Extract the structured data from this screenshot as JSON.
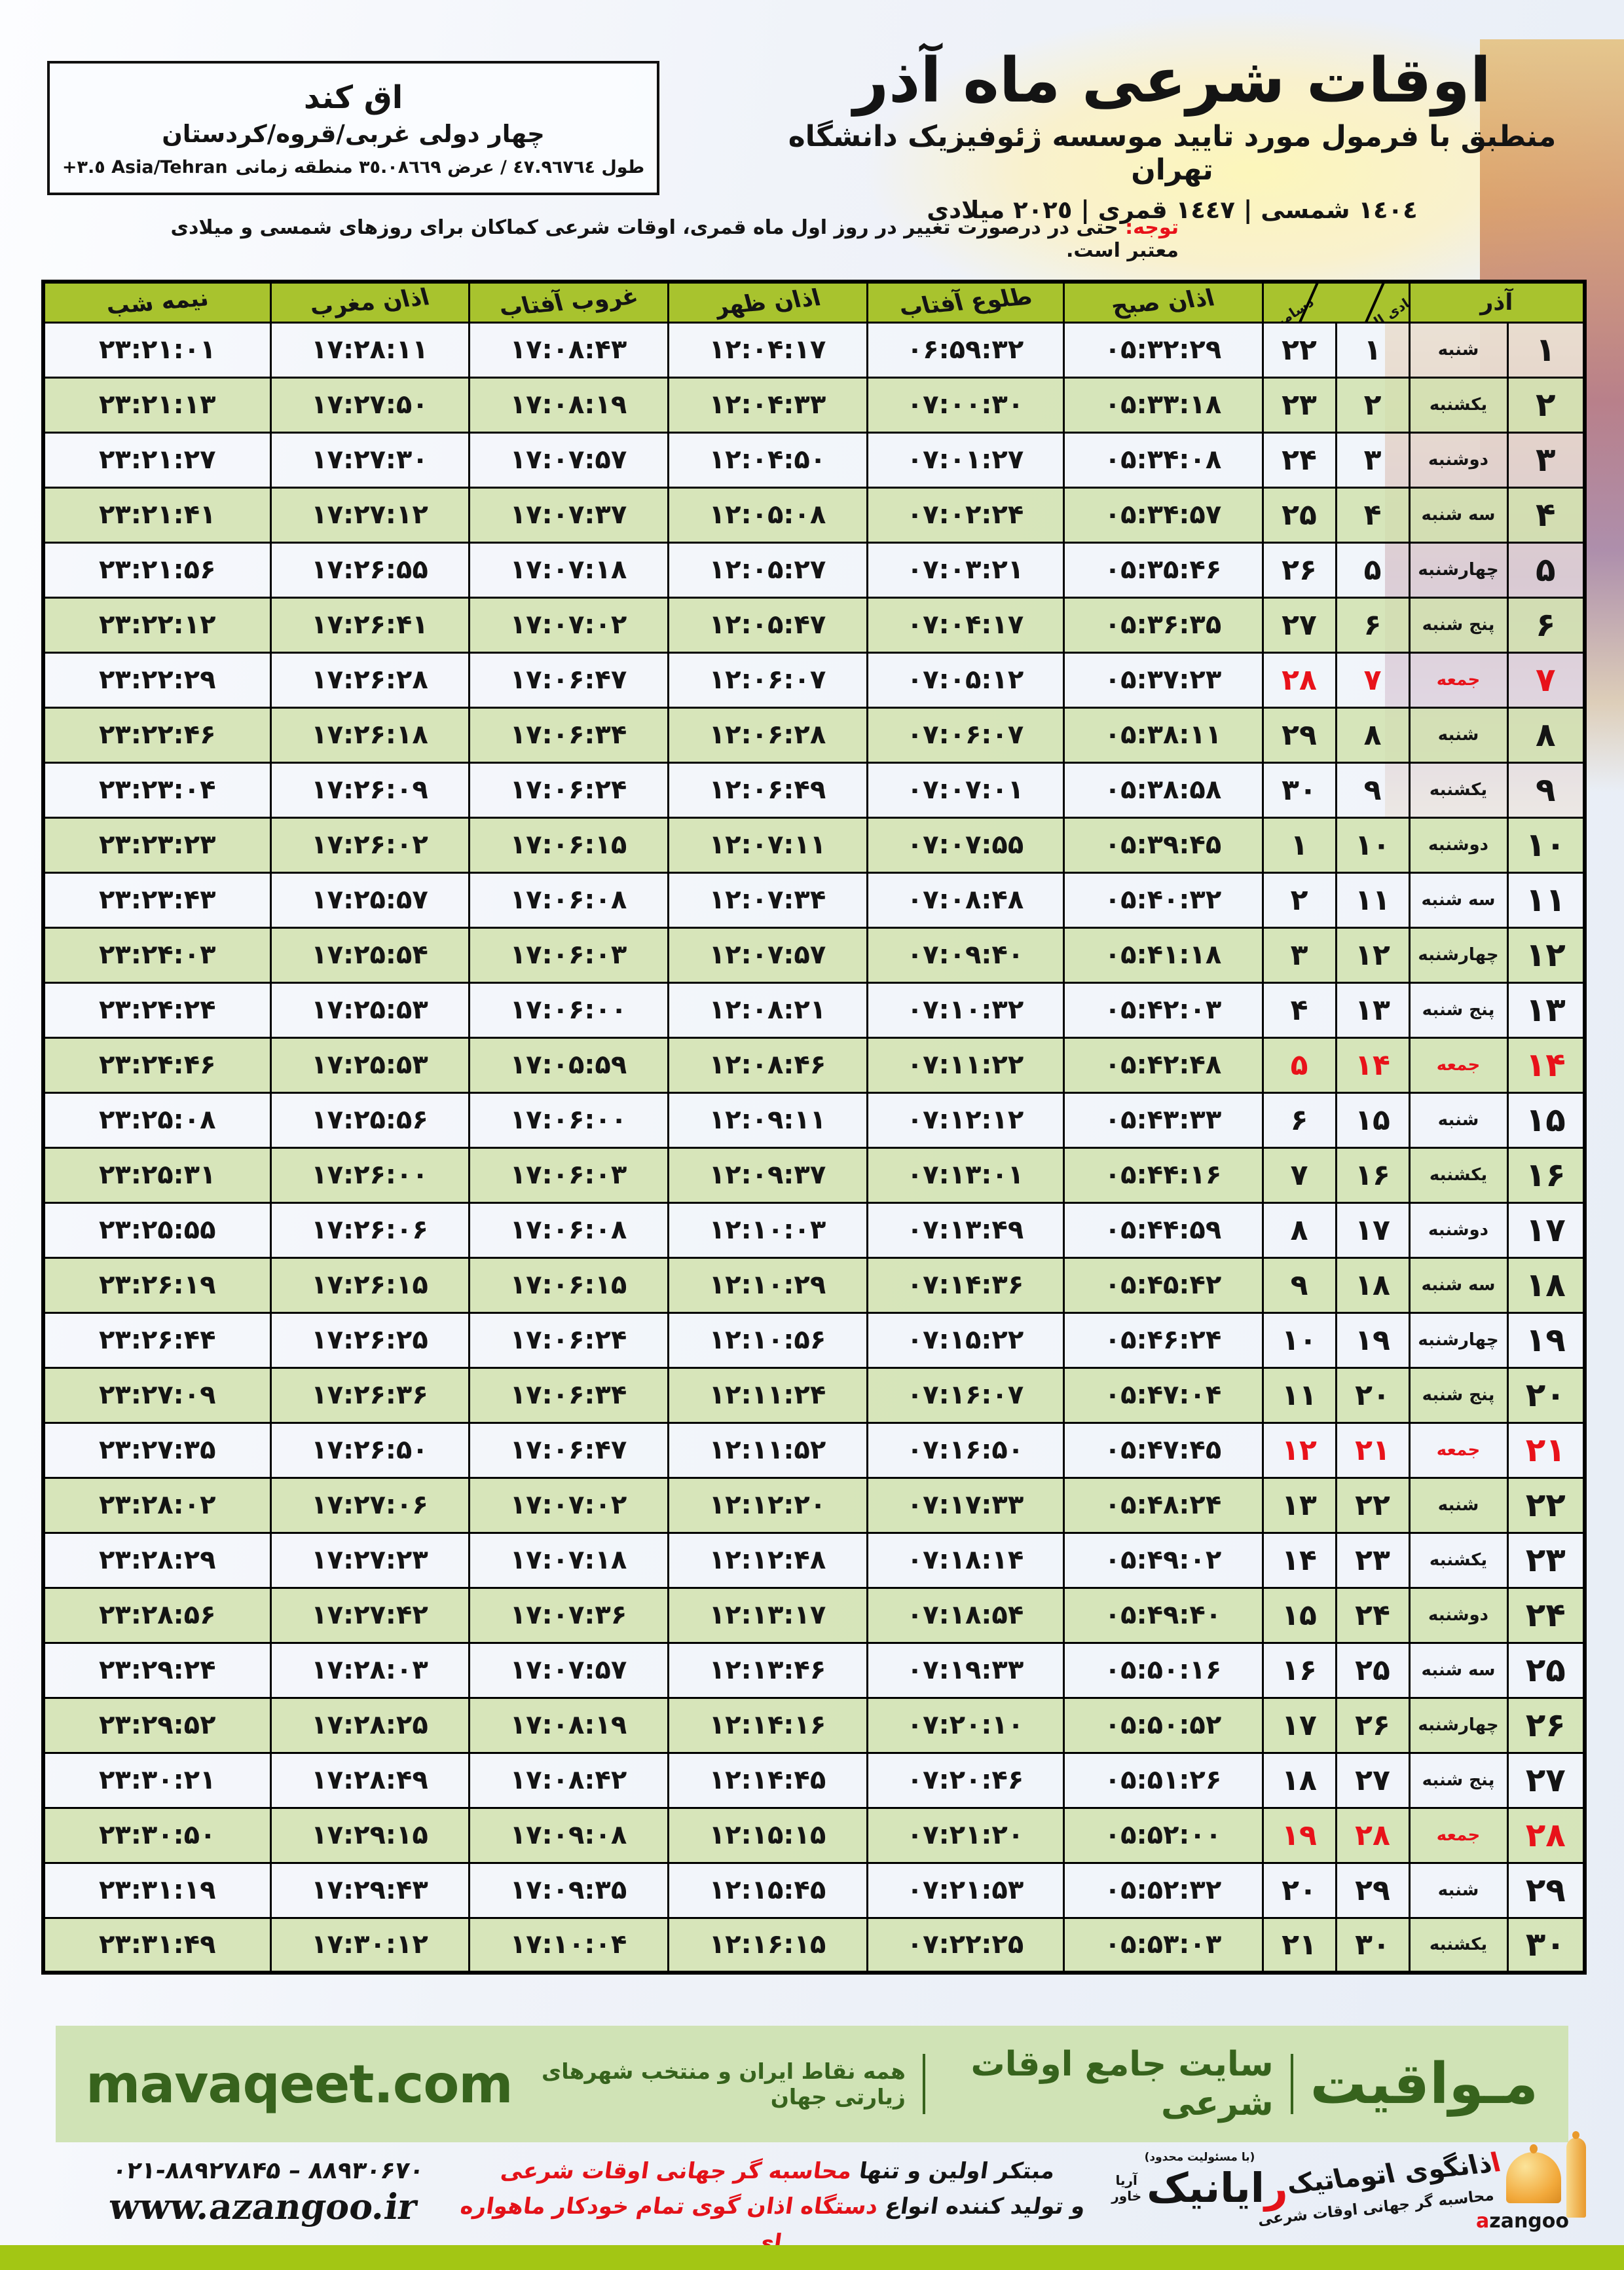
{
  "location_box": {
    "name": "اق کند",
    "region": "چهار دولی غربی/قروه/کردستان",
    "coords_fa": "طول ٤٧.٩٦٧٦٤ / عرض ٣٥.٠٨٦٦٩ منطقه زمانی",
    "coords_en": "+٣.٥ Asia/Tehran"
  },
  "header": {
    "title": "اوقات شرعی ماه آذر",
    "subtitle": "منطبق با فرمول مورد تایید موسسه ژئوفیزیک دانشگاه تهران",
    "dates_line": "١٤٠٤ شمسی | ١٤٤٧ قمری | ٢٠٢٥ میلادی"
  },
  "notice": {
    "label": "توجه:",
    "text": "حتی در درصورت تغییر در روز اول ماه قمری، اوقات شرعی کماکان برای روزهای شمسی و میلادی معتبر است."
  },
  "table": {
    "headers": {
      "midnight": "نیمه شب",
      "maghrib": "اذان مغرب",
      "sunset": "غروب آفتاب",
      "dhuhr": "اذان ظهر",
      "sunrise": "طلوع آفتاب",
      "fajr": "اذان صبح",
      "diagonal_top": "جمادی الثانی نوامبر",
      "diagonal_bottom": "دسامبر",
      "azar_month": "آذر"
    },
    "column_order": [
      "midnight",
      "maghrib",
      "sunset",
      "dhuhr",
      "sunrise",
      "fajr",
      "greg",
      "hijri",
      "weekday",
      "azar"
    ],
    "rows": [
      {
        "azar": "۱",
        "weekday": "شنبه",
        "hijri": "۱",
        "greg": "۲۲",
        "fajr": "۰۵:۳۲:۲۹",
        "sunrise": "۰۶:۵۹:۳۲",
        "dhuhr": "۱۲:۰۴:۱۷",
        "sunset": "۱۷:۰۸:۴۳",
        "maghrib": "۱۷:۲۸:۱۱",
        "midnight": "۲۳:۲۱:۰۱",
        "friday": false
      },
      {
        "azar": "۲",
        "weekday": "یکشنبه",
        "hijri": "۲",
        "greg": "۲۳",
        "fajr": "۰۵:۳۳:۱۸",
        "sunrise": "۰۷:۰۰:۳۰",
        "dhuhr": "۱۲:۰۴:۳۳",
        "sunset": "۱۷:۰۸:۱۹",
        "maghrib": "۱۷:۲۷:۵۰",
        "midnight": "۲۳:۲۱:۱۳",
        "friday": false
      },
      {
        "azar": "۳",
        "weekday": "دوشنبه",
        "hijri": "۳",
        "greg": "۲۴",
        "fajr": "۰۵:۳۴:۰۸",
        "sunrise": "۰۷:۰۱:۲۷",
        "dhuhr": "۱۲:۰۴:۵۰",
        "sunset": "۱۷:۰۷:۵۷",
        "maghrib": "۱۷:۲۷:۳۰",
        "midnight": "۲۳:۲۱:۲۷",
        "friday": false
      },
      {
        "azar": "۴",
        "weekday": "سه شنبه",
        "hijri": "۴",
        "greg": "۲۵",
        "fajr": "۰۵:۳۴:۵۷",
        "sunrise": "۰۷:۰۲:۲۴",
        "dhuhr": "۱۲:۰۵:۰۸",
        "sunset": "۱۷:۰۷:۳۷",
        "maghrib": "۱۷:۲۷:۱۲",
        "midnight": "۲۳:۲۱:۴۱",
        "friday": false
      },
      {
        "azar": "۵",
        "weekday": "چهارشنبه",
        "hijri": "۵",
        "greg": "۲۶",
        "fajr": "۰۵:۳۵:۴۶",
        "sunrise": "۰۷:۰۳:۲۱",
        "dhuhr": "۱۲:۰۵:۲۷",
        "sunset": "۱۷:۰۷:۱۸",
        "maghrib": "۱۷:۲۶:۵۵",
        "midnight": "۲۳:۲۱:۵۶",
        "friday": false
      },
      {
        "azar": "۶",
        "weekday": "پنج شنبه",
        "hijri": "۶",
        "greg": "۲۷",
        "fajr": "۰۵:۳۶:۳۵",
        "sunrise": "۰۷:۰۴:۱۷",
        "dhuhr": "۱۲:۰۵:۴۷",
        "sunset": "۱۷:۰۷:۰۲",
        "maghrib": "۱۷:۲۶:۴۱",
        "midnight": "۲۳:۲۲:۱۲",
        "friday": false
      },
      {
        "azar": "۷",
        "weekday": "جمعه",
        "hijri": "۷",
        "greg": "۲۸",
        "fajr": "۰۵:۳۷:۲۳",
        "sunrise": "۰۷:۰۵:۱۲",
        "dhuhr": "۱۲:۰۶:۰۷",
        "sunset": "۱۷:۰۶:۴۷",
        "maghrib": "۱۷:۲۶:۲۸",
        "midnight": "۲۳:۲۲:۲۹",
        "friday": true
      },
      {
        "azar": "۸",
        "weekday": "شنبه",
        "hijri": "۸",
        "greg": "۲۹",
        "fajr": "۰۵:۳۸:۱۱",
        "sunrise": "۰۷:۰۶:۰۷",
        "dhuhr": "۱۲:۰۶:۲۸",
        "sunset": "۱۷:۰۶:۳۴",
        "maghrib": "۱۷:۲۶:۱۸",
        "midnight": "۲۳:۲۲:۴۶",
        "friday": false
      },
      {
        "azar": "۹",
        "weekday": "یکشنبه",
        "hijri": "۹",
        "greg": "۳۰",
        "fajr": "۰۵:۳۸:۵۸",
        "sunrise": "۰۷:۰۷:۰۱",
        "dhuhr": "۱۲:۰۶:۴۹",
        "sunset": "۱۷:۰۶:۲۴",
        "maghrib": "۱۷:۲۶:۰۹",
        "midnight": "۲۳:۲۳:۰۴",
        "friday": false
      },
      {
        "azar": "۱۰",
        "weekday": "دوشنبه",
        "hijri": "۱۰",
        "greg": "۱",
        "fajr": "۰۵:۳۹:۴۵",
        "sunrise": "۰۷:۰۷:۵۵",
        "dhuhr": "۱۲:۰۷:۱۱",
        "sunset": "۱۷:۰۶:۱۵",
        "maghrib": "۱۷:۲۶:۰۲",
        "midnight": "۲۳:۲۳:۲۳",
        "friday": false
      },
      {
        "azar": "۱۱",
        "weekday": "سه شنبه",
        "hijri": "۱۱",
        "greg": "۲",
        "fajr": "۰۵:۴۰:۳۲",
        "sunrise": "۰۷:۰۸:۴۸",
        "dhuhr": "۱۲:۰۷:۳۴",
        "sunset": "۱۷:۰۶:۰۸",
        "maghrib": "۱۷:۲۵:۵۷",
        "midnight": "۲۳:۲۳:۴۳",
        "friday": false
      },
      {
        "azar": "۱۲",
        "weekday": "چهارشنبه",
        "hijri": "۱۲",
        "greg": "۳",
        "fajr": "۰۵:۴۱:۱۸",
        "sunrise": "۰۷:۰۹:۴۰",
        "dhuhr": "۱۲:۰۷:۵۷",
        "sunset": "۱۷:۰۶:۰۳",
        "maghrib": "۱۷:۲۵:۵۴",
        "midnight": "۲۳:۲۴:۰۳",
        "friday": false
      },
      {
        "azar": "۱۳",
        "weekday": "پنج شنبه",
        "hijri": "۱۳",
        "greg": "۴",
        "fajr": "۰۵:۴۲:۰۳",
        "sunrise": "۰۷:۱۰:۳۲",
        "dhuhr": "۱۲:۰۸:۲۱",
        "sunset": "۱۷:۰۶:۰۰",
        "maghrib": "۱۷:۲۵:۵۳",
        "midnight": "۲۳:۲۴:۲۴",
        "friday": false
      },
      {
        "azar": "۱۴",
        "weekday": "جمعه",
        "hijri": "۱۴",
        "greg": "۵",
        "fajr": "۰۵:۴۲:۴۸",
        "sunrise": "۰۷:۱۱:۲۲",
        "dhuhr": "۱۲:۰۸:۴۶",
        "sunset": "۱۷:۰۵:۵۹",
        "maghrib": "۱۷:۲۵:۵۳",
        "midnight": "۲۳:۲۴:۴۶",
        "friday": true
      },
      {
        "azar": "۱۵",
        "weekday": "شنبه",
        "hijri": "۱۵",
        "greg": "۶",
        "fajr": "۰۵:۴۳:۳۳",
        "sunrise": "۰۷:۱۲:۱۲",
        "dhuhr": "۱۲:۰۹:۱۱",
        "sunset": "۱۷:۰۶:۰۰",
        "maghrib": "۱۷:۲۵:۵۶",
        "midnight": "۲۳:۲۵:۰۸",
        "friday": false
      },
      {
        "azar": "۱۶",
        "weekday": "یکشنبه",
        "hijri": "۱۶",
        "greg": "۷",
        "fajr": "۰۵:۴۴:۱۶",
        "sunrise": "۰۷:۱۳:۰۱",
        "dhuhr": "۱۲:۰۹:۳۷",
        "sunset": "۱۷:۰۶:۰۳",
        "maghrib": "۱۷:۲۶:۰۰",
        "midnight": "۲۳:۲۵:۳۱",
        "friday": false
      },
      {
        "azar": "۱۷",
        "weekday": "دوشنبه",
        "hijri": "۱۷",
        "greg": "۸",
        "fajr": "۰۵:۴۴:۵۹",
        "sunrise": "۰۷:۱۳:۴۹",
        "dhuhr": "۱۲:۱۰:۰۳",
        "sunset": "۱۷:۰۶:۰۸",
        "maghrib": "۱۷:۲۶:۰۶",
        "midnight": "۲۳:۲۵:۵۵",
        "friday": false
      },
      {
        "azar": "۱۸",
        "weekday": "سه شنبه",
        "hijri": "۱۸",
        "greg": "۹",
        "fajr": "۰۵:۴۵:۴۲",
        "sunrise": "۰۷:۱۴:۳۶",
        "dhuhr": "۱۲:۱۰:۲۹",
        "sunset": "۱۷:۰۶:۱۵",
        "maghrib": "۱۷:۲۶:۱۵",
        "midnight": "۲۳:۲۶:۱۹",
        "friday": false
      },
      {
        "azar": "۱۹",
        "weekday": "چهارشنبه",
        "hijri": "۱۹",
        "greg": "۱۰",
        "fajr": "۰۵:۴۶:۲۴",
        "sunrise": "۰۷:۱۵:۲۲",
        "dhuhr": "۱۲:۱۰:۵۶",
        "sunset": "۱۷:۰۶:۲۴",
        "maghrib": "۱۷:۲۶:۲۵",
        "midnight": "۲۳:۲۶:۴۴",
        "friday": false
      },
      {
        "azar": "۲۰",
        "weekday": "پنج شنبه",
        "hijri": "۲۰",
        "greg": "۱۱",
        "fajr": "۰۵:۴۷:۰۴",
        "sunrise": "۰۷:۱۶:۰۷",
        "dhuhr": "۱۲:۱۱:۲۴",
        "sunset": "۱۷:۰۶:۳۴",
        "maghrib": "۱۷:۲۶:۳۶",
        "midnight": "۲۳:۲۷:۰۹",
        "friday": false
      },
      {
        "azar": "۲۱",
        "weekday": "جمعه",
        "hijri": "۲۱",
        "greg": "۱۲",
        "fajr": "۰۵:۴۷:۴۵",
        "sunrise": "۰۷:۱۶:۵۰",
        "dhuhr": "۱۲:۱۱:۵۲",
        "sunset": "۱۷:۰۶:۴۷",
        "maghrib": "۱۷:۲۶:۵۰",
        "midnight": "۲۳:۲۷:۳۵",
        "friday": true
      },
      {
        "azar": "۲۲",
        "weekday": "شنبه",
        "hijri": "۲۲",
        "greg": "۱۳",
        "fajr": "۰۵:۴۸:۲۴",
        "sunrise": "۰۷:۱۷:۳۳",
        "dhuhr": "۱۲:۱۲:۲۰",
        "sunset": "۱۷:۰۷:۰۲",
        "maghrib": "۱۷:۲۷:۰۶",
        "midnight": "۲۳:۲۸:۰۲",
        "friday": false
      },
      {
        "azar": "۲۳",
        "weekday": "یکشنبه",
        "hijri": "۲۳",
        "greg": "۱۴",
        "fajr": "۰۵:۴۹:۰۲",
        "sunrise": "۰۷:۱۸:۱۴",
        "dhuhr": "۱۲:۱۲:۴۸",
        "sunset": "۱۷:۰۷:۱۸",
        "maghrib": "۱۷:۲۷:۲۳",
        "midnight": "۲۳:۲۸:۲۹",
        "friday": false
      },
      {
        "azar": "۲۴",
        "weekday": "دوشنبه",
        "hijri": "۲۴",
        "greg": "۱۵",
        "fajr": "۰۵:۴۹:۴۰",
        "sunrise": "۰۷:۱۸:۵۴",
        "dhuhr": "۱۲:۱۳:۱۷",
        "sunset": "۱۷:۰۷:۳۶",
        "maghrib": "۱۷:۲۷:۴۲",
        "midnight": "۲۳:۲۸:۵۶",
        "friday": false
      },
      {
        "azar": "۲۵",
        "weekday": "سه شنبه",
        "hijri": "۲۵",
        "greg": "۱۶",
        "fajr": "۰۵:۵۰:۱۶",
        "sunrise": "۰۷:۱۹:۳۳",
        "dhuhr": "۱۲:۱۳:۴۶",
        "sunset": "۱۷:۰۷:۵۷",
        "maghrib": "۱۷:۲۸:۰۳",
        "midnight": "۲۳:۲۹:۲۴",
        "friday": false
      },
      {
        "azar": "۲۶",
        "weekday": "چهارشنبه",
        "hijri": "۲۶",
        "greg": "۱۷",
        "fajr": "۰۵:۵۰:۵۲",
        "sunrise": "۰۷:۲۰:۱۰",
        "dhuhr": "۱۲:۱۴:۱۶",
        "sunset": "۱۷:۰۸:۱۹",
        "maghrib": "۱۷:۲۸:۲۵",
        "midnight": "۲۳:۲۹:۵۲",
        "friday": false
      },
      {
        "azar": "۲۷",
        "weekday": "پنج شنبه",
        "hijri": "۲۷",
        "greg": "۱۸",
        "fajr": "۰۵:۵۱:۲۶",
        "sunrise": "۰۷:۲۰:۴۶",
        "dhuhr": "۱۲:۱۴:۴۵",
        "sunset": "۱۷:۰۸:۴۲",
        "maghrib": "۱۷:۲۸:۴۹",
        "midnight": "۲۳:۳۰:۲۱",
        "friday": false
      },
      {
        "azar": "۲۸",
        "weekday": "جمعه",
        "hijri": "۲۸",
        "greg": "۱۹",
        "fajr": "۰۵:۵۲:۰۰",
        "sunrise": "۰۷:۲۱:۲۰",
        "dhuhr": "۱۲:۱۵:۱۵",
        "sunset": "۱۷:۰۹:۰۸",
        "maghrib": "۱۷:۲۹:۱۵",
        "midnight": "۲۳:۳۰:۵۰",
        "friday": true
      },
      {
        "azar": "۲۹",
        "weekday": "شنبه",
        "hijri": "۲۹",
        "greg": "۲۰",
        "fajr": "۰۵:۵۲:۳۲",
        "sunrise": "۰۷:۲۱:۵۳",
        "dhuhr": "۱۲:۱۵:۴۵",
        "sunset": "۱۷:۰۹:۳۵",
        "maghrib": "۱۷:۲۹:۴۳",
        "midnight": "۲۳:۳۱:۱۹",
        "friday": false
      },
      {
        "azar": "۳۰",
        "weekday": "یکشنبه",
        "hijri": "۳۰",
        "greg": "۲۱",
        "fajr": "۰۵:۵۳:۰۳",
        "sunrise": "۰۷:۲۲:۲۵",
        "dhuhr": "۱۲:۱۶:۱۵",
        "sunset": "۱۷:۱۰:۰۴",
        "maghrib": "۱۷:۳۰:۱۲",
        "midnight": "۲۳:۳۱:۴۹",
        "friday": false
      }
    ]
  },
  "footer_bar": {
    "brand": "مـواقیت",
    "tagline1": "سایت جامع اوقات شرعی",
    "tagline2": "همه نقاط ایران و منتخب شهرهای زیارتی جهان",
    "site": "mavaqeet.com"
  },
  "bottom": {
    "phones": "۰۲۱-۸۸۹۲۷۸۴۵ – ۸۸۹۳۰۶۷۰",
    "site": "www.azangoo.ir",
    "promo_line1_black": "مبتکر اولین و تنها",
    "promo_line1_red": "محاسبه گر جهانی اوقات شرعی",
    "promo_line2_black": "و تولید کننده انواع",
    "promo_line2_red": "دستگاه اذان گوی تمام خودکار ماهواره ای",
    "rayanik": {
      "top": "(با مسئولیت محدود)",
      "name_red": "ر",
      "name_rest": "ایانیک",
      "side1": "آریا",
      "side2": "خاور"
    },
    "azangoo": {
      "title_red": "ا",
      "title_rest": "ذانگوی اتوماتیک",
      "subtitle": "محاسبه گر جهانی اوقات شرعی",
      "latin_red": "a",
      "latin_rest": "zangoo"
    }
  },
  "colors": {
    "accent_red": "#e8121a",
    "header_green": "#a8c32e",
    "row_green": "#d5e4b6",
    "footer_bar_green": "#d0e3b6",
    "bottom_bar_green": "#a3c614",
    "brand_dark_green": "#37631d"
  }
}
